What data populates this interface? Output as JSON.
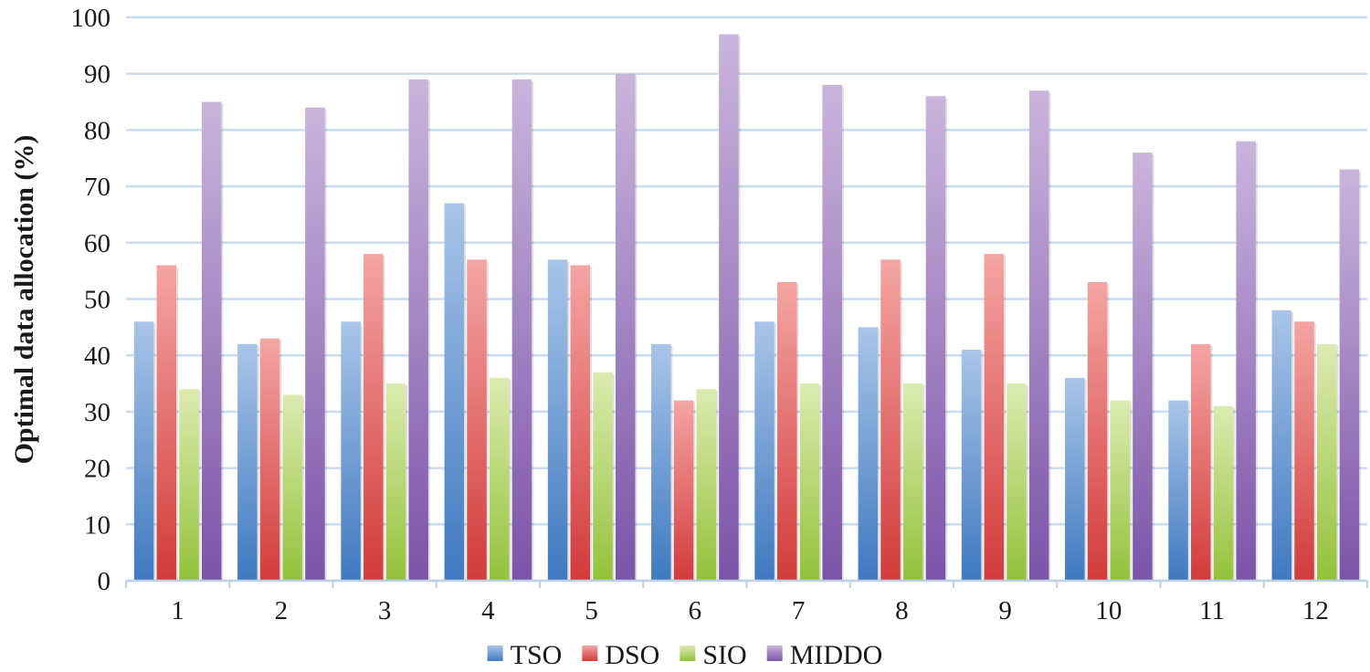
{
  "chart_data": {
    "type": "bar",
    "title": "",
    "xlabel": "",
    "ylabel": "Optimal data allocation (%)",
    "ylim": [
      0,
      100
    ],
    "yticks": [
      0,
      10,
      20,
      30,
      40,
      50,
      60,
      70,
      80,
      90,
      100
    ],
    "grid": true,
    "legend_position": "bottom-center",
    "categories": [
      "1",
      "2",
      "3",
      "4",
      "5",
      "6",
      "7",
      "8",
      "9",
      "10",
      "11",
      "12"
    ],
    "series": [
      {
        "name": "TSO",
        "color_dark": "#3f79c0",
        "color_light": "#a9c5e8",
        "values": [
          46,
          42,
          46,
          67,
          57,
          42,
          46,
          45,
          41,
          36,
          32,
          48
        ]
      },
      {
        "name": "DSO",
        "color_dark": "#d23b3b",
        "color_light": "#f4a5a3",
        "values": [
          56,
          43,
          58,
          57,
          56,
          32,
          53,
          57,
          58,
          53,
          42,
          46
        ]
      },
      {
        "name": "SIO",
        "color_dark": "#93c23a",
        "color_light": "#dcebb0",
        "values": [
          34,
          33,
          35,
          36,
          37,
          34,
          35,
          35,
          35,
          32,
          31,
          42
        ]
      },
      {
        "name": "MIDDO",
        "color_dark": "#7b54a8",
        "color_light": "#c9b5dc",
        "values": [
          85,
          84,
          89,
          89,
          90,
          97,
          88,
          86,
          87,
          76,
          78,
          73
        ]
      }
    ]
  }
}
